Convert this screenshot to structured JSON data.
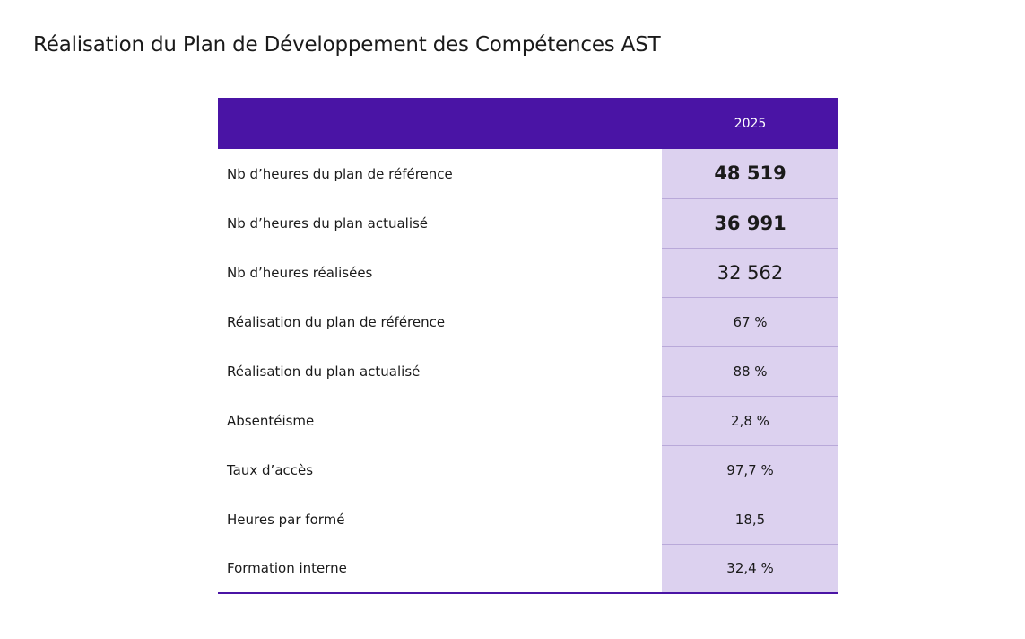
{
  "page": {
    "title": "Réalisation du Plan de Développement des Compétences AST"
  },
  "table": {
    "header": {
      "label_column": "",
      "year": "2025"
    },
    "rows": [
      {
        "label": "Nb d’heures du plan de référence",
        "value": "48 519"
      },
      {
        "label": "Nb d’heures du plan actualisé",
        "value": "36 991"
      },
      {
        "label": "Nb d’heures réalisées",
        "value": "32 562"
      },
      {
        "label": "Réalisation du plan de référence",
        "value": "67 %"
      },
      {
        "label": "Réalisation du plan actualisé",
        "value": "88 %"
      },
      {
        "label": "Absentéisme",
        "value": "2,8 %"
      },
      {
        "label": "Taux d’accès",
        "value": "97,7 %"
      },
      {
        "label": "Heures par formé",
        "value": "18,5"
      },
      {
        "label": "Formation interne",
        "value": "32,4 %"
      }
    ]
  },
  "colors": {
    "header_background": "#4a14a5",
    "value_column_background": "#dcd1ef"
  }
}
